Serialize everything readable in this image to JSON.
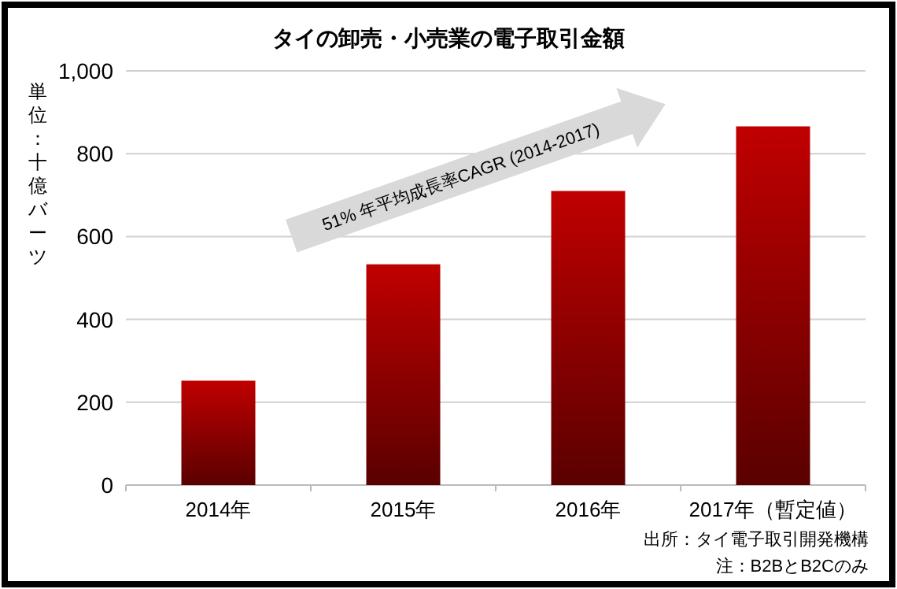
{
  "chart_data": {
    "type": "bar",
    "title": "タイの卸売・小売業の電子取引金額",
    "ylabel": "単位：十億バーツ",
    "categories": [
      "2014年",
      "2015年",
      "2016年",
      "2017年（暫定値）"
    ],
    "values": [
      252,
      533,
      710,
      866
    ],
    "color": "#c00000",
    "ylim": [
      0,
      1000
    ],
    "yticks": [
      0,
      200,
      400,
      600,
      800,
      {
        "value": 1000,
        "label": "1,000"
      }
    ],
    "grid": "y",
    "annotations": [
      "51% 年平均成長率CAGR (2014-2017)",
      "出所：タイ電子取引開発機構",
      "注：B2BとB2Cのみ"
    ]
  }
}
